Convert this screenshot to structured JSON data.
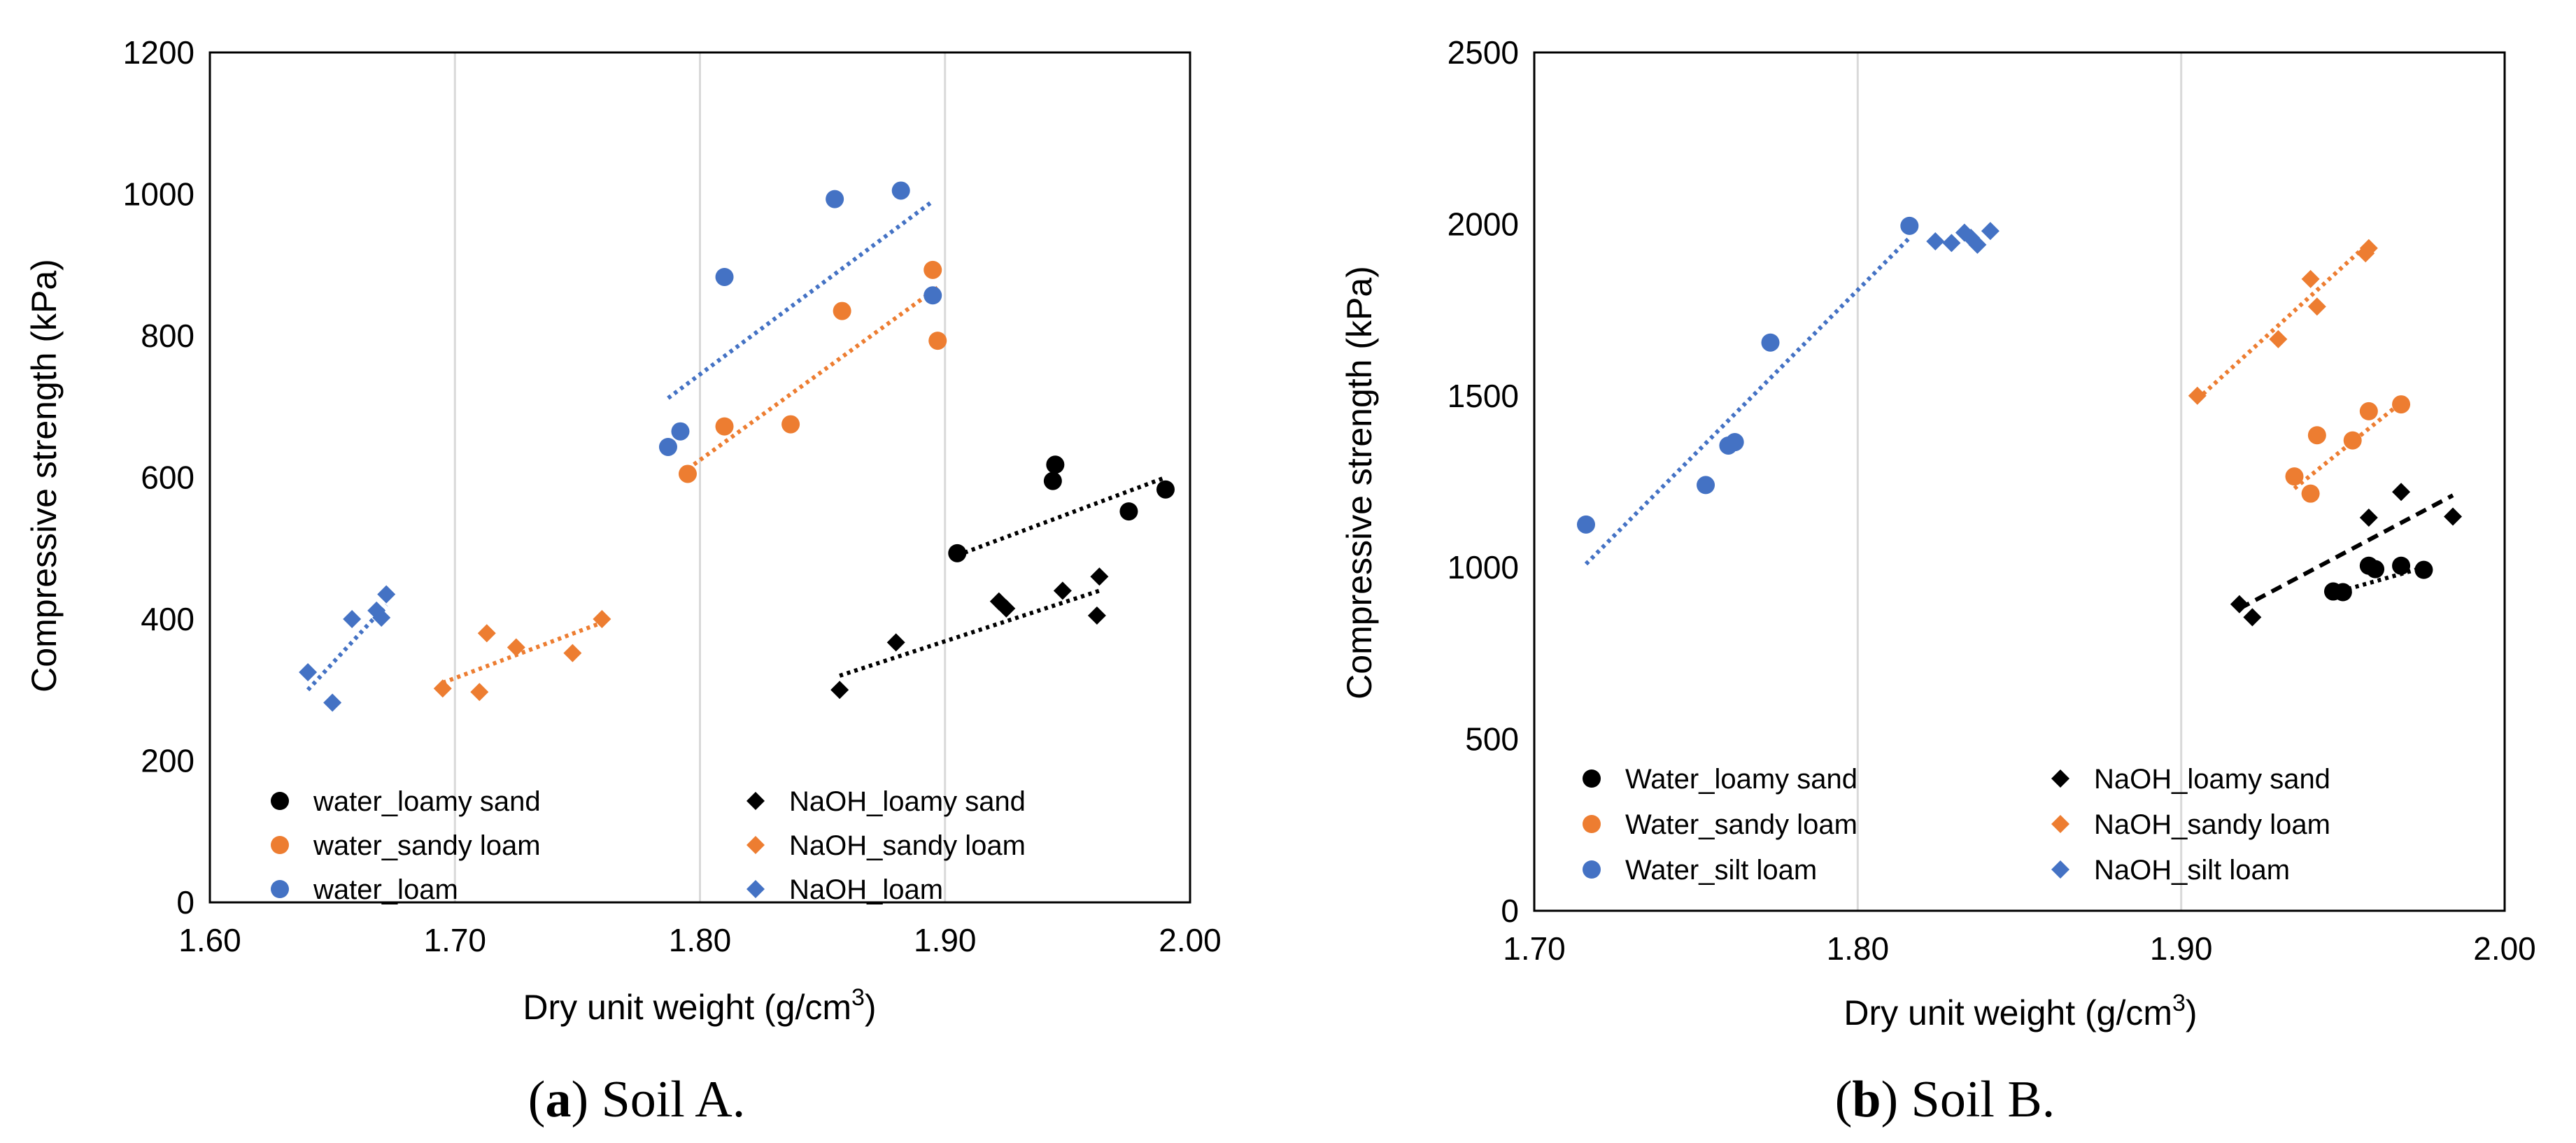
{
  "colors": {
    "black": "#000000",
    "orange": "#ED7D31",
    "blue": "#4472C4",
    "grid": "#D9D9D9",
    "frame": "#000000"
  },
  "chart_data": [
    {
      "id": "a",
      "type": "scatter",
      "caption": {
        "prefix": "(",
        "letter": "a",
        "rest": ") Soil A."
      },
      "xlabel": "Dry unit weight (g/cm",
      "xlabel_superscript": "3",
      "xlabel_suffix": ")",
      "ylabel": "Compressive strength (kPa)",
      "xlim": [
        1.6,
        2.0
      ],
      "ylim": [
        0,
        1200
      ],
      "xticks": [
        1.6,
        1.7,
        1.8,
        1.9,
        2.0
      ],
      "xtick_labels": [
        "1.60",
        "1.70",
        "1.80",
        "1.90",
        "2.00"
      ],
      "yticks": [
        0,
        200,
        400,
        600,
        800,
        1000,
        1200
      ],
      "ytick_labels": [
        "0",
        "200",
        "400",
        "600",
        "800",
        "1000",
        "1200"
      ],
      "grid": "vertical",
      "series": [
        {
          "name": "water_loamy sand",
          "color": "black",
          "marker": "circle",
          "points": [
            [
              1.905,
              493
            ],
            [
              1.944,
              595
            ],
            [
              1.945,
              618
            ],
            [
              1.975,
              552
            ],
            [
              1.99,
              583
            ]
          ],
          "trend": {
            "from": [
              1.905,
              490
            ],
            "to": [
              1.99,
              600
            ],
            "dash": "dot"
          }
        },
        {
          "name": "water_sandy loam",
          "color": "orange",
          "marker": "circle",
          "points": [
            [
              1.795,
              605
            ],
            [
              1.81,
              672
            ],
            [
              1.837,
              675
            ],
            [
              1.858,
              835
            ],
            [
              1.895,
              893
            ],
            [
              1.897,
              793
            ]
          ],
          "trend": {
            "from": [
              1.795,
              612
            ],
            "to": [
              1.897,
              868
            ],
            "dash": "dot"
          }
        },
        {
          "name": "water_loam",
          "color": "blue",
          "marker": "circle",
          "points": [
            [
              1.787,
              643
            ],
            [
              1.792,
              665
            ],
            [
              1.81,
              883
            ],
            [
              1.855,
              993
            ],
            [
              1.882,
              1005
            ],
            [
              1.895,
              857
            ]
          ],
          "trend": {
            "from": [
              1.787,
              712
            ],
            "to": [
              1.895,
              990
            ],
            "dash": "dot"
          }
        },
        {
          "name": "NaOH_loamy sand",
          "color": "black",
          "marker": "diamond",
          "points": [
            [
              1.857,
              300
            ],
            [
              1.88,
              367
            ],
            [
              1.922,
              425
            ],
            [
              1.925,
              415
            ],
            [
              1.948,
              440
            ],
            [
              1.962,
              405
            ],
            [
              1.963,
              460
            ]
          ],
          "trend": {
            "from": [
              1.857,
              320
            ],
            "to": [
              1.963,
              440
            ],
            "dash": "dot"
          }
        },
        {
          "name": "NaOH_sandy loam",
          "color": "orange",
          "marker": "diamond",
          "points": [
            [
              1.695,
              302
            ],
            [
              1.71,
              297
            ],
            [
              1.713,
              380
            ],
            [
              1.725,
              360
            ],
            [
              1.748,
              352
            ],
            [
              1.76,
              400
            ]
          ],
          "trend": {
            "from": [
              1.695,
              310
            ],
            "to": [
              1.76,
              395
            ],
            "dash": "dot"
          }
        },
        {
          "name": "NaOH_loam",
          "color": "blue",
          "marker": "diamond",
          "points": [
            [
              1.64,
              325
            ],
            [
              1.65,
              282
            ],
            [
              1.658,
              400
            ],
            [
              1.668,
              412
            ],
            [
              1.67,
              402
            ],
            [
              1.672,
              435
            ]
          ],
          "trend": {
            "from": [
              1.64,
              300
            ],
            "to": [
              1.672,
              420
            ],
            "dash": "dot"
          }
        }
      ],
      "legend": {
        "position": "bottom",
        "left_column": [
          "water_loamy sand",
          "water_sandy loam",
          "water_loam"
        ],
        "right_column": [
          "NaOH_loamy sand",
          "NaOH_sandy loam",
          "NaOH_loam"
        ]
      }
    },
    {
      "id": "b",
      "type": "scatter",
      "caption": {
        "prefix": "(",
        "letter": "b",
        "rest": ") Soil B."
      },
      "xlabel": "Dry unit weight (g/cm",
      "xlabel_superscript": "3",
      "xlabel_suffix": ")",
      "ylabel": "Compressive strength (kPa)",
      "xlim": [
        1.7,
        2.0
      ],
      "ylim": [
        0,
        2500
      ],
      "xticks": [
        1.7,
        1.8,
        1.9,
        2.0
      ],
      "xtick_labels": [
        "1.70",
        "1.80",
        "1.90",
        "2.00"
      ],
      "yticks": [
        0,
        500,
        1000,
        1500,
        2000,
        2500
      ],
      "ytick_labels": [
        "0",
        "500",
        "1000",
        "1500",
        "2000",
        "2500"
      ],
      "grid": "vertical",
      "series": [
        {
          "name": "Water_loamy sand",
          "color": "black",
          "marker": "circle",
          "points": [
            [
              1.947,
              930
            ],
            [
              1.95,
              928
            ],
            [
              1.958,
              1005
            ],
            [
              1.96,
              995
            ],
            [
              1.968,
              1005
            ],
            [
              1.975,
              993
            ]
          ],
          "trend": {
            "from": [
              1.947,
              925
            ],
            "to": [
              1.975,
              1000
            ],
            "dash": "dot"
          }
        },
        {
          "name": "Water_sandy loam",
          "color": "orange",
          "marker": "circle",
          "points": [
            [
              1.935,
              1265
            ],
            [
              1.94,
              1215
            ],
            [
              1.942,
              1385
            ],
            [
              1.953,
              1370
            ],
            [
              1.958,
              1455
            ],
            [
              1.968,
              1475
            ]
          ],
          "trend": {
            "from": [
              1.935,
              1230
            ],
            "to": [
              1.968,
              1480
            ],
            "dash": "dot"
          }
        },
        {
          "name": "Water_silt loam",
          "color": "blue",
          "marker": "circle",
          "points": [
            [
              1.716,
              1125
            ],
            [
              1.753,
              1240
            ],
            [
              1.76,
              1355
            ],
            [
              1.762,
              1365
            ],
            [
              1.773,
              1655
            ],
            [
              1.816,
              1995
            ]
          ],
          "trend": {
            "from": [
              1.716,
              1010
            ],
            "to": [
              1.816,
              1960
            ],
            "dash": "dot"
          }
        },
        {
          "name": "NaOH_loamy sand",
          "color": "black",
          "marker": "diamond",
          "points": [
            [
              1.918,
              893
            ],
            [
              1.922,
              855
            ],
            [
              1.958,
              1145
            ],
            [
              1.968,
              1220
            ],
            [
              1.984,
              1148
            ]
          ],
          "trend": {
            "from": [
              1.918,
              880
            ],
            "to": [
              1.984,
              1210
            ],
            "dash": "dash"
          }
        },
        {
          "name": "NaOH_sandy loam",
          "color": "orange",
          "marker": "diamond",
          "points": [
            [
              1.905,
              1500
            ],
            [
              1.93,
              1665
            ],
            [
              1.94,
              1840
            ],
            [
              1.942,
              1760
            ],
            [
              1.957,
              1915
            ],
            [
              1.958,
              1930
            ]
          ],
          "trend": {
            "from": [
              1.905,
              1490
            ],
            "to": [
              1.958,
              1945
            ],
            "dash": "dot"
          }
        },
        {
          "name": "NaOH_silt loam",
          "color": "blue",
          "marker": "diamond",
          "points": [
            [
              1.824,
              1950
            ],
            [
              1.829,
              1945
            ],
            [
              1.833,
              1975
            ],
            [
              1.835,
              1960
            ],
            [
              1.837,
              1940
            ],
            [
              1.841,
              1980
            ]
          ],
          "trend": null
        }
      ],
      "legend": {
        "position": "bottom",
        "left_column": [
          "Water_loamy sand",
          "Water_sandy loam",
          "Water_silt loam"
        ],
        "right_column": [
          "NaOH_loamy sand",
          "NaOH_sandy loam",
          "NaOH_silt loam"
        ]
      }
    }
  ]
}
